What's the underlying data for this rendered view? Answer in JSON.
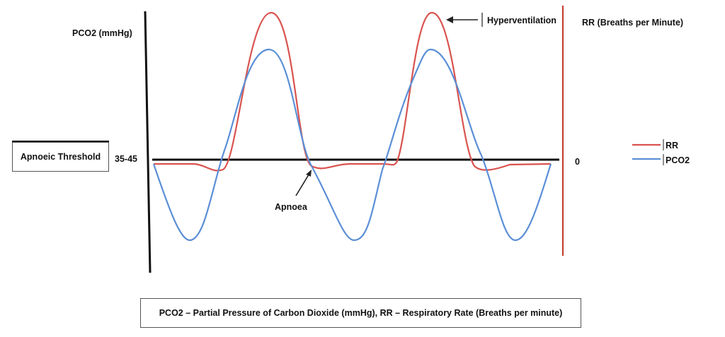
{
  "labels": {
    "left_axis": "PCO2 (mmHg)",
    "right_axis": "RR (Breaths per Minute)",
    "threshold_value": "35-45",
    "right_zero": "0",
    "apnoeic_threshold": "Apnoeic Threshold",
    "apnoea": "Apnoea",
    "hyperventilation": "Hyperventilation",
    "caption": "PCO2 – Partial Pressure of Carbon Dioxide (mmHg), RR – Respiratory Rate (Breaths per minute)"
  },
  "legend": [
    {
      "name": "RR",
      "color": "#d9534f"
    },
    {
      "name": "PCO2",
      "color": "#5b8fd6"
    }
  ],
  "colors": {
    "rr": "#d9534f",
    "pco2": "#5b8fd6",
    "axis_left": "#111111",
    "axis_right": "#c0392b",
    "baseline": "#111111"
  }
}
